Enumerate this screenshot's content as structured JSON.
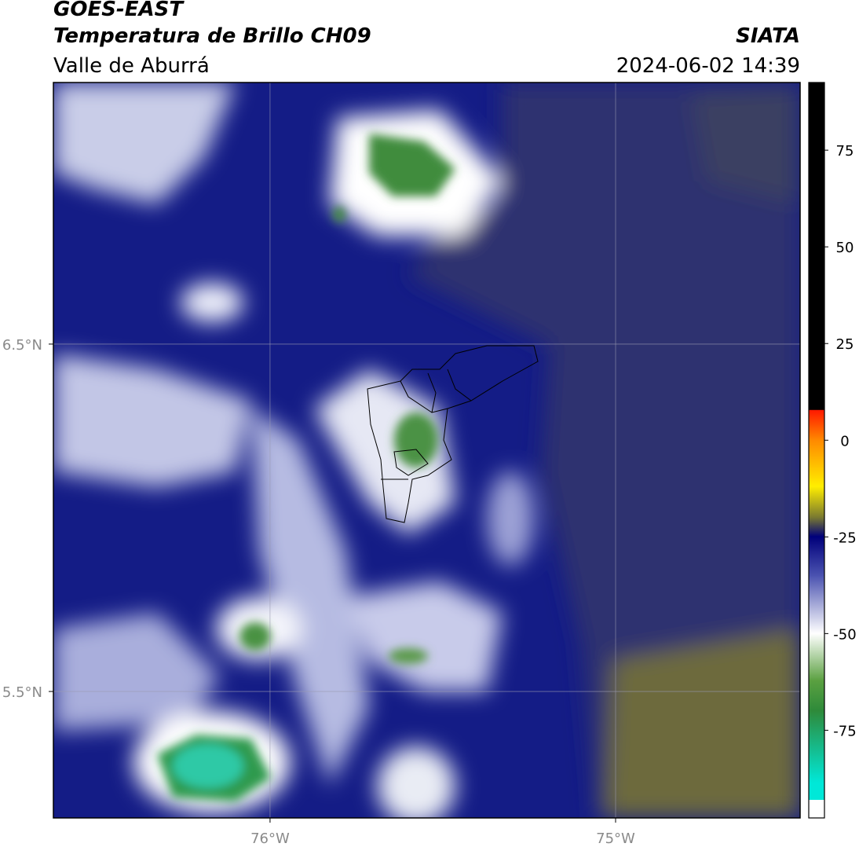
{
  "header": {
    "title": "GOES-EAST",
    "subtitle": "Temperatura de Brillo CH09",
    "region": "Valle de Aburrá",
    "source": "SIATA",
    "datetime": "2024-06-02 14:39"
  },
  "map": {
    "xlim": [
      -76.627,
      -74.466
    ],
    "ylim": [
      5.136,
      7.253
    ],
    "xticks": [
      {
        "value": -76,
        "label": "76°W"
      },
      {
        "value": -75,
        "label": "75°W"
      }
    ],
    "yticks": [
      {
        "value": 6.5,
        "label": "6.5°N"
      },
      {
        "value": 5.5,
        "label": "5.5°N"
      }
    ],
    "grid": true
  },
  "colorbar": {
    "lim": [
      -93,
      92.5
    ],
    "ticks": [
      -75,
      -50,
      -25,
      0,
      25,
      50,
      75
    ]
  }
}
